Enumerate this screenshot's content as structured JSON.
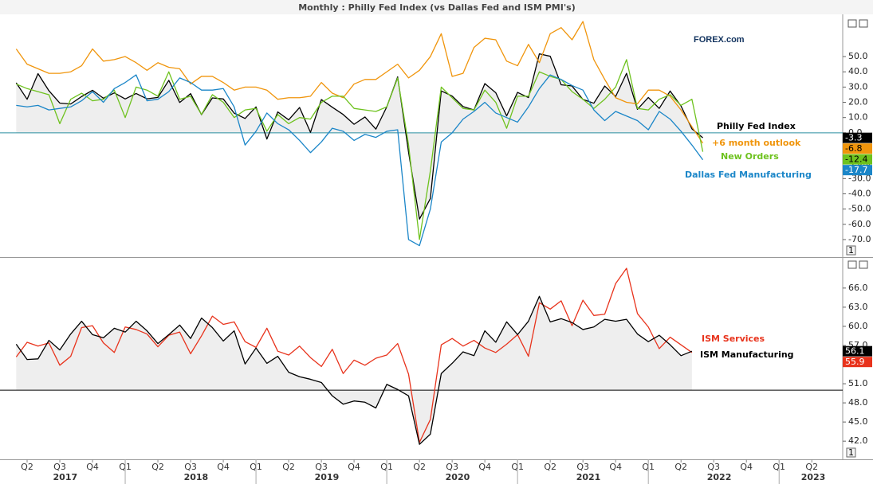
{
  "logo": "FOREX.com",
  "panel_label": "1",
  "chart_data": [
    {
      "type": "line",
      "title": "Monthly : Philly Fed Index (vs Dallas Fed and ISM PMI's)",
      "ylim": [
        -81,
        77.7
      ],
      "yticks": [
        {
          "value": 50,
          "label": "50.0"
        },
        {
          "value": 40,
          "label": "40.0"
        },
        {
          "value": 30,
          "label": "30.0"
        },
        {
          "value": 20,
          "label": "20.0"
        },
        {
          "value": 10,
          "label": "10.0"
        },
        {
          "value": 0,
          "label": "0.0"
        },
        {
          "value": -10,
          "label": "-10.0"
        },
        {
          "value": -20,
          "label": "-20.0"
        },
        {
          "value": -30,
          "label": "-30.0"
        },
        {
          "value": -40,
          "label": "-40.0"
        },
        {
          "value": -50,
          "label": "-50.0"
        },
        {
          "value": -60,
          "label": "-60.0"
        },
        {
          "value": -70,
          "label": "-70.0"
        }
      ],
      "baseline": 0,
      "baseline_color": "#2a8fa0",
      "grid": false,
      "series": [
        {
          "name": "Philly Fed Index",
          "color": "#000000",
          "shade": true,
          "values": [
            null,
            null,
            32.8,
            22,
            38.8,
            27.6,
            19.5,
            18.9,
            23.8,
            27.9,
            22.7,
            26.2,
            22.2,
            25.8,
            22.3,
            23.2,
            34.4,
            19.9,
            25.7,
            11.9,
            22.9,
            22.2,
            12.9,
            9.4,
            17,
            -4.1,
            13.7,
            8.5,
            16.6,
            0.3,
            21.8,
            16.8,
            12,
            5.6,
            10.4,
            2.4,
            17,
            36.7,
            -12.7,
            -56.6,
            -43.1,
            27.5,
            24.1,
            17.2,
            15,
            32.3,
            26.3,
            11.1,
            26.5,
            23.1,
            51.8,
            50.2,
            31.5,
            30.7,
            21.9,
            19.4,
            30.7,
            23.8,
            39,
            15.4,
            23.2,
            16,
            27.4,
            17.6,
            2.6,
            -3.3,
            null,
            null,
            null,
            null,
            null,
            null,
            null,
            null,
            null,
            null,
            null,
            null
          ]
        },
        {
          "name": "+6 month outlook",
          "color": "#f0950c",
          "values": [
            null,
            null,
            55,
            45,
            42,
            39,
            39,
            40,
            44,
            55,
            47,
            48,
            50,
            46,
            41,
            46,
            43,
            42,
            32,
            37,
            37,
            33,
            28,
            30,
            30,
            28,
            22,
            23,
            23,
            24,
            33,
            26,
            23,
            32,
            35,
            35,
            40,
            45,
            36,
            41,
            50,
            65,
            37,
            39,
            56,
            62,
            61,
            47,
            44,
            58,
            46,
            65,
            69,
            61,
            73,
            48,
            35,
            23,
            20,
            19,
            28,
            28,
            24,
            15,
            4,
            -6.8,
            null,
            null,
            null,
            null,
            null,
            null,
            null,
            null,
            null,
            null,
            null,
            null
          ]
        },
        {
          "name": "New Orders",
          "color": "#6ec21e",
          "values": [
            null,
            null,
            32,
            29,
            27,
            25,
            6,
            22,
            26,
            21,
            22,
            28,
            10,
            30,
            28,
            24,
            40,
            22,
            24,
            12,
            25,
            20,
            10,
            15,
            16,
            1,
            12,
            6,
            10,
            9,
            20,
            24,
            24,
            16,
            15,
            14,
            17,
            36,
            -8,
            -70,
            -25,
            30,
            23,
            16,
            15,
            28,
            20,
            3,
            24,
            24,
            40,
            37,
            35,
            27,
            22,
            16,
            22,
            30,
            48,
            16,
            15,
            22,
            25,
            18,
            22,
            -12.4,
            null,
            null,
            null,
            null,
            null,
            null,
            null,
            null,
            null,
            null,
            null,
            null
          ]
        },
        {
          "name": "Dallas Fed Manufacturing",
          "color": "#1b86c8",
          "values": [
            null,
            null,
            18,
            17,
            18,
            15,
            16,
            17,
            21,
            27,
            20,
            29,
            33,
            38,
            21,
            22,
            27,
            36,
            33,
            28,
            28,
            29,
            17,
            -8,
            1,
            13,
            6,
            2,
            -5,
            -13,
            -6,
            3,
            1,
            -5,
            -1,
            -3,
            1,
            2,
            -70,
            -74,
            -50,
            -6,
            0,
            9,
            14,
            20,
            13,
            10,
            7,
            17,
            29,
            38,
            35,
            31,
            28,
            15,
            8,
            14,
            11,
            8,
            2,
            14,
            9,
            1,
            -8,
            -17.7,
            null,
            null,
            null,
            null,
            null,
            null,
            null,
            null,
            null,
            null,
            null,
            null
          ]
        }
      ]
    },
    {
      "type": "line",
      "ylim": [
        39.4,
        70.6
      ],
      "yticks": [
        {
          "value": 66,
          "label": "66.0"
        },
        {
          "value": 63,
          "label": "63.0"
        },
        {
          "value": 60,
          "label": "60.0"
        },
        {
          "value": 57,
          "label": "57.0"
        },
        {
          "value": 54,
          "label": "54.0"
        },
        {
          "value": 51,
          "label": "51.0"
        },
        {
          "value": 48,
          "label": "48.0"
        },
        {
          "value": 45,
          "label": "45.0"
        },
        {
          "value": 42,
          "label": "42.0"
        }
      ],
      "baseline": 50,
      "baseline_color": "#000000",
      "grid": false,
      "categories": [
        null,
        null,
        null,
        "Q2",
        null,
        null,
        "Q3",
        null,
        null,
        "Q4",
        null,
        null,
        "Q1",
        null,
        null,
        "Q2",
        null,
        null,
        "Q3",
        null,
        null,
        "Q4",
        null,
        null,
        "Q1",
        null,
        null,
        "Q2",
        null,
        null,
        "Q3",
        null,
        null,
        "Q4",
        null,
        null,
        "Q1",
        null,
        null,
        "Q2",
        null,
        null,
        "Q3",
        null,
        null,
        "Q4",
        null,
        null,
        "Q1",
        null,
        null,
        "Q2",
        null,
        null,
        "Q3",
        null,
        null,
        "Q4",
        null,
        null,
        "Q1",
        null,
        null,
        "Q2",
        null,
        null,
        "Q3",
        null,
        null,
        "Q4",
        null,
        null,
        "Q1",
        null,
        null,
        "Q2",
        null,
        null
      ],
      "years": [
        "2017",
        "2018",
        "2019",
        "2020",
        "2021",
        "2022",
        "2023"
      ],
      "series": [
        {
          "name": "ISM Services",
          "color": "#e8331c",
          "values": [
            null,
            null,
            55.2,
            57.5,
            56.9,
            57.4,
            53.9,
            55.3,
            59.8,
            60.1,
            57.4,
            55.9,
            59.9,
            59.5,
            58.8,
            56.8,
            58.6,
            59.1,
            55.7,
            58.5,
            61.6,
            60.3,
            60.7,
            57.6,
            56.7,
            59.7,
            56.1,
            55.5,
            56.9,
            55.1,
            53.7,
            56.4,
            52.6,
            54.7,
            53.9,
            55,
            55.5,
            57.3,
            52.5,
            41.8,
            45.4,
            57.1,
            58.1,
            56.9,
            57.8,
            56.6,
            55.9,
            57.2,
            58.7,
            55.3,
            63.7,
            62.7,
            64,
            60.1,
            64.1,
            61.7,
            61.9,
            66.7,
            69.1,
            62,
            59.9,
            56.5,
            58.3,
            57.1,
            55.9,
            null,
            null,
            null,
            null,
            null,
            null,
            null,
            null,
            null,
            null,
            null,
            null,
            null
          ]
        },
        {
          "name": "ISM Manufacturing",
          "color": "#000000",
          "shade": true,
          "values": [
            null,
            null,
            57.2,
            54.8,
            54.9,
            57.8,
            56.3,
            58.8,
            60.8,
            58.7,
            58.2,
            59.7,
            59.1,
            60.8,
            59.3,
            57.3,
            58.7,
            60.2,
            58.1,
            61.3,
            59.8,
            57.7,
            59.3,
            54.1,
            56.6,
            54.2,
            55.3,
            52.8,
            52.1,
            51.7,
            51.2,
            49.1,
            47.8,
            48.3,
            48.1,
            47.2,
            50.9,
            50.1,
            49.1,
            41.5,
            43.1,
            52.6,
            54.2,
            56,
            55.4,
            59.3,
            57.5,
            60.7,
            58.7,
            60.8,
            64.7,
            60.7,
            61.2,
            60.6,
            59.5,
            59.9,
            61.1,
            60.8,
            61.1,
            58.8,
            57.6,
            58.6,
            57.1,
            55.4,
            56.1,
            null,
            null,
            null,
            null,
            null,
            null,
            null,
            null,
            null,
            null,
            null,
            null,
            null
          ]
        }
      ]
    }
  ]
}
